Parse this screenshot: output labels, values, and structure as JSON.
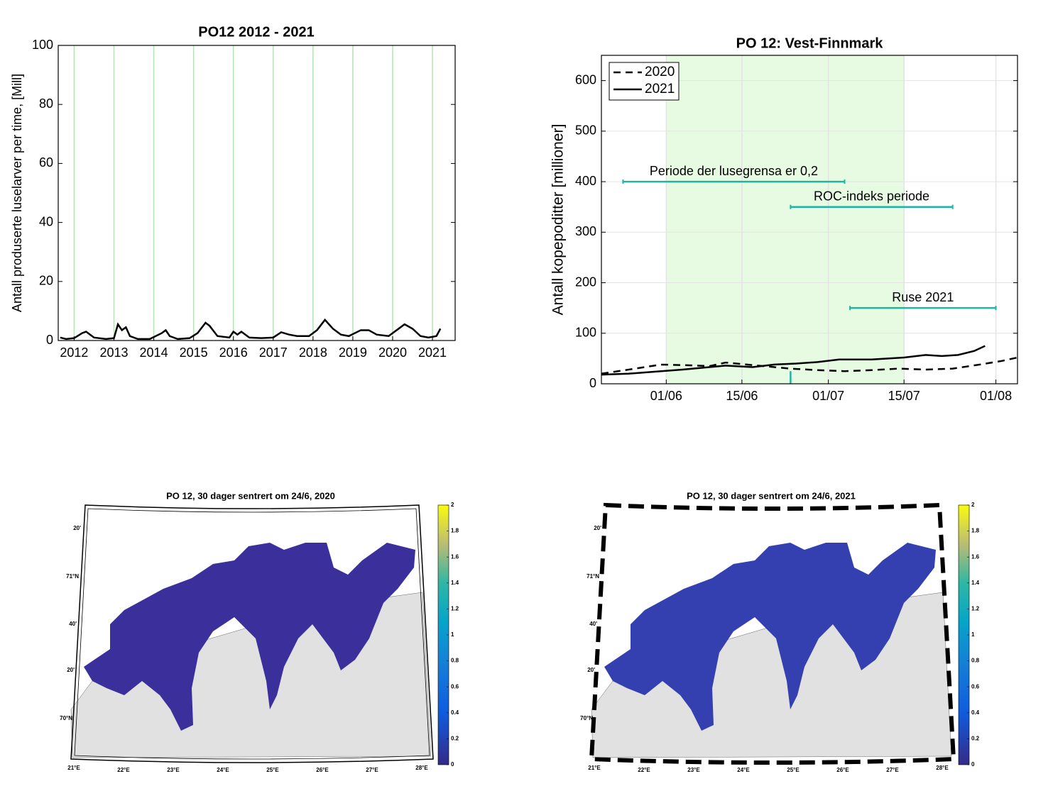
{
  "chart_data": [
    {
      "type": "line",
      "title": "PO12 2012 - 2021",
      "ylabel": "Antall produserte luselarver per time, [Mill]",
      "xlim": [
        2011.6,
        2021.57
      ],
      "xticks": [
        2012,
        2013,
        2014,
        2015,
        2016,
        2017,
        2018,
        2019,
        2020,
        2021
      ],
      "ylim": [
        0,
        100
      ],
      "yticks": [
        0,
        20,
        40,
        60,
        80,
        100
      ],
      "grid": "x",
      "grid_color": "#b5e3b5",
      "series": [
        {
          "color": "#000000",
          "style": "solid",
          "x": [
            2011.65,
            2011.8,
            2012.0,
            2012.2,
            2012.3,
            2012.5,
            2012.8,
            2013.0,
            2013.1,
            2013.2,
            2013.3,
            2013.4,
            2013.6,
            2013.9,
            2014.2,
            2014.3,
            2014.4,
            2014.6,
            2014.9,
            2015.1,
            2015.3,
            2015.4,
            2015.6,
            2015.9,
            2016.0,
            2016.1,
            2016.2,
            2016.4,
            2016.7,
            2017.0,
            2017.2,
            2017.4,
            2017.6,
            2017.9,
            2018.1,
            2018.3,
            2018.5,
            2018.7,
            2018.9,
            2019.2,
            2019.4,
            2019.6,
            2019.9,
            2020.1,
            2020.3,
            2020.5,
            2020.7,
            2020.9,
            2021.1,
            2021.2
          ],
          "values": [
            1,
            0.5,
            0.8,
            2.5,
            3,
            1,
            0.5,
            0.8,
            5.5,
            3.5,
            4.5,
            1.5,
            0.5,
            0.5,
            2.5,
            3.5,
            1.5,
            0.5,
            0.8,
            2.5,
            6,
            5,
            1.5,
            1,
            3,
            2,
            3,
            1,
            0.8,
            1,
            2.8,
            2,
            1.5,
            1.5,
            3.5,
            7,
            4,
            2,
            1.5,
            3.5,
            3.5,
            2,
            1.5,
            3.5,
            5.5,
            4,
            1.5,
            1,
            1.5,
            4
          ]
        }
      ]
    },
    {
      "type": "line",
      "title": "PO 12: Vest-Finnmark",
      "ylabel": "Antall kopepoditter [millioner]",
      "xlim": [
        140,
        217
      ],
      "xticks": [
        {
          "value": 152,
          "label": "01/06"
        },
        {
          "value": 166,
          "label": "15/06"
        },
        {
          "value": 182,
          "label": "01/07"
        },
        {
          "value": 196,
          "label": "15/07"
        },
        {
          "value": 213,
          "label": "01/08"
        }
      ],
      "ylim": [
        0,
        650
      ],
      "yticks": [
        0,
        100,
        200,
        300,
        400,
        500,
        600
      ],
      "grid": "both",
      "grid_color": "#e3e3e3",
      "legend": "upper left",
      "shaded_x": [
        152,
        196
      ],
      "shade_color": "#e6fbe2",
      "annotation_color": "#1fb5a5",
      "annotations": [
        {
          "text": "Periode der lusegrensa er 0,2",
          "x": [
            144,
            185
          ],
          "y": 400
        },
        {
          "text": "ROC-indeks periode",
          "x": [
            175,
            205
          ],
          "y": 350
        },
        {
          "text": "Ruse 2021",
          "x": [
            186,
            213
          ],
          "y": 150
        }
      ],
      "markers": [
        {
          "x": 175,
          "y": [
            0,
            25
          ]
        }
      ],
      "series": [
        {
          "name": "2020",
          "color": "#000000",
          "style": "dashed",
          "x": [
            140,
            145,
            151,
            155,
            160,
            163,
            170,
            175,
            180,
            185,
            190,
            195,
            200,
            205,
            210,
            214,
            217
          ],
          "values": [
            20,
            28,
            38,
            37,
            35,
            42,
            35,
            30,
            27,
            25,
            27,
            30,
            28,
            30,
            38,
            45,
            52
          ]
        },
        {
          "name": "2021",
          "color": "#000000",
          "style": "solid",
          "x": [
            140,
            145,
            150,
            155,
            160,
            163,
            168,
            172,
            176,
            180,
            184,
            190,
            196,
            200,
            203,
            206,
            209,
            211
          ],
          "values": [
            18,
            20,
            24,
            28,
            33,
            36,
            33,
            38,
            40,
            43,
            48,
            48,
            52,
            57,
            55,
            57,
            65,
            75
          ]
        }
      ]
    }
  ],
  "maps": [
    {
      "title": "PO 12, 30 dager sentrert om 24/6, 2020",
      "frame": "solid",
      "sea_color": "#3b2f9c",
      "lat_labels": [
        "20'",
        "71°N",
        "40'",
        "20'",
        "70°N"
      ],
      "lon_labels": [
        "21°E",
        "22°E",
        "23°E",
        "24°E",
        "25°E",
        "26°E",
        "27°E",
        "28°E"
      ],
      "colorbar_ticks": [
        0,
        0.2,
        0.4,
        0.6,
        0.8,
        1,
        1.2,
        1.4,
        1.6,
        1.8,
        2
      ]
    },
    {
      "title": "PO 12, 30 dager sentrert om 24/6, 2021",
      "frame": "dashed",
      "sea_color": "#3440b0",
      "lat_labels": [
        "20'",
        "71°N",
        "40'",
        "20'",
        "70°N"
      ],
      "lon_labels": [
        "21°E",
        "22°E",
        "23°E",
        "24°E",
        "25°E",
        "26°E",
        "27°E",
        "28°E"
      ],
      "colorbar_ticks": [
        0,
        0.2,
        0.4,
        0.6,
        0.8,
        1,
        1.2,
        1.4,
        1.6,
        1.8,
        2
      ]
    }
  ]
}
